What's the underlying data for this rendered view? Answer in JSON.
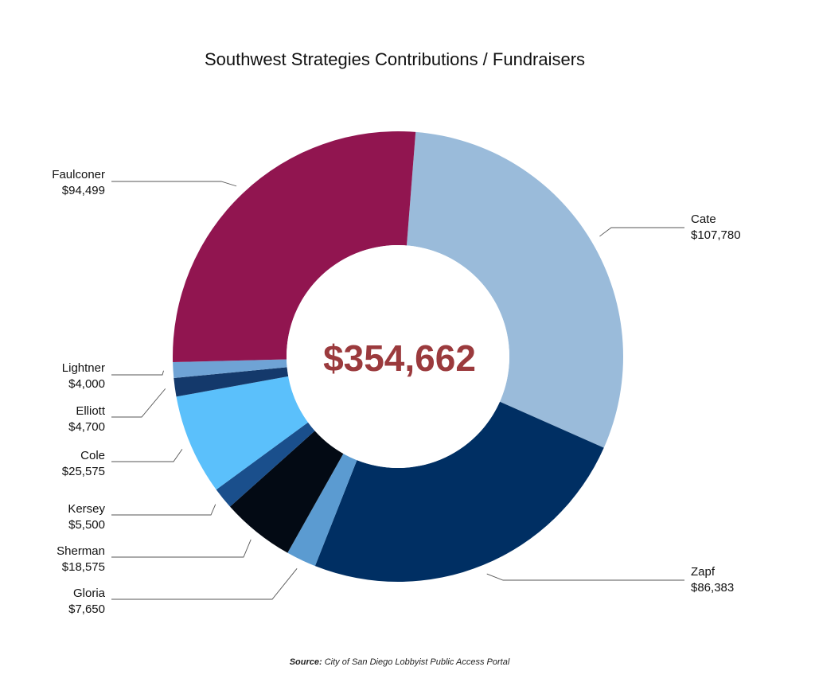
{
  "chart_data": {
    "type": "pie",
    "variant": "donut",
    "title": "Southwest Strategies Contributions / Fundraisers",
    "center_label": "$354,662",
    "source_label": "Source:",
    "source_text": "City of San Diego Lobbyist Public Access Portal",
    "slices": [
      {
        "name": "Cate",
        "value": 107780,
        "value_label": "$107,780",
        "color": "#9abbda"
      },
      {
        "name": "Zapf",
        "value": 86383,
        "value_label": "$86,383",
        "color": "#002f63"
      },
      {
        "name": "Gloria",
        "value": 7650,
        "value_label": "$7,650",
        "color": "#5b9bd1"
      },
      {
        "name": "Sherman",
        "value": 18575,
        "value_label": "$18,575",
        "color": "#030a14"
      },
      {
        "name": "Kersey",
        "value": 5500,
        "value_label": "$5,500",
        "color": "#1a4f8c"
      },
      {
        "name": "Cole",
        "value": 25575,
        "value_label": "$25,575",
        "color": "#5bc0fb"
      },
      {
        "name": "Elliott",
        "value": 4700,
        "value_label": "$4,700",
        "color": "#14396b"
      },
      {
        "name": "Lightner",
        "value": 4000,
        "value_label": "$4,000",
        "color": "#6fa3d5"
      },
      {
        "name": "Faulconer",
        "value": 94499,
        "value_label": "$94,499",
        "color": "#911550"
      }
    ]
  }
}
